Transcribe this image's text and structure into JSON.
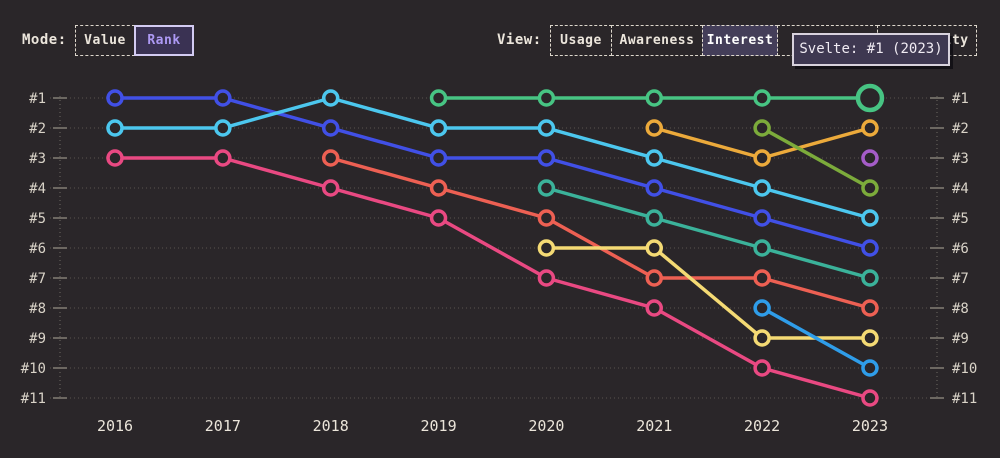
{
  "page": {
    "background": "#2a2629"
  },
  "controls": {
    "mode": {
      "label": "Mode:",
      "options": [
        {
          "label": "Value",
          "selected": false
        },
        {
          "label": "Rank",
          "selected": true
        }
      ]
    },
    "view": {
      "label": "View:",
      "options": [
        {
          "label": "Usage",
          "selected": false
        },
        {
          "label": "Awareness",
          "selected": false
        },
        {
          "label": "Interest",
          "selected": true
        },
        {
          "label": "",
          "selected": false
        },
        {
          "label": "Positivity",
          "selected": false
        }
      ]
    }
  },
  "tooltip": {
    "text": "Svelte: #1 (2023)"
  },
  "chart_data": {
    "type": "line",
    "subtype": "bump-chart-rankings",
    "x": [
      2016,
      2017,
      2018,
      2019,
      2020,
      2021,
      2022,
      2023
    ],
    "x_labels": [
      "2016",
      "2017",
      "2018",
      "2019",
      "2020",
      "2021",
      "2022",
      "2023"
    ],
    "rank_labels": [
      "#1",
      "#2",
      "#3",
      "#4",
      "#5",
      "#6",
      "#7",
      "#8",
      "#9",
      "#10",
      "#11"
    ],
    "ylim": [
      1,
      11
    ],
    "grid": "dotted-horizontal",
    "legend": "none",
    "highlight": {
      "series": "green",
      "year": 2023,
      "tooltip": "Svelte: #1 (2023)"
    },
    "series": [
      {
        "id": "blue",
        "color": "#4150e6",
        "points": [
          [
            2016,
            1
          ],
          [
            2017,
            1
          ],
          [
            2018,
            2
          ],
          [
            2019,
            3
          ],
          [
            2020,
            3
          ],
          [
            2021,
            4
          ],
          [
            2022,
            5
          ],
          [
            2023,
            6
          ]
        ]
      },
      {
        "id": "cyan",
        "color": "#4cc7ee",
        "points": [
          [
            2016,
            2
          ],
          [
            2017,
            2
          ],
          [
            2018,
            1
          ],
          [
            2019,
            2
          ],
          [
            2020,
            2
          ],
          [
            2021,
            3
          ],
          [
            2022,
            4
          ],
          [
            2023,
            5
          ]
        ]
      },
      {
        "id": "pink",
        "color": "#e94982",
        "points": [
          [
            2016,
            3
          ],
          [
            2017,
            3
          ],
          [
            2018,
            4
          ],
          [
            2019,
            5
          ],
          [
            2020,
            7
          ],
          [
            2021,
            8
          ],
          [
            2022,
            10
          ],
          [
            2023,
            11
          ]
        ]
      },
      {
        "id": "tomato",
        "color": "#ed6053",
        "points": [
          [
            2018,
            3
          ],
          [
            2019,
            4
          ],
          [
            2020,
            5
          ],
          [
            2021,
            7
          ],
          [
            2022,
            7
          ],
          [
            2023,
            8
          ]
        ]
      },
      {
        "id": "green",
        "color": "#47c483",
        "points": [
          [
            2019,
            1
          ],
          [
            2020,
            1
          ],
          [
            2021,
            1
          ],
          [
            2022,
            1
          ],
          [
            2023,
            1
          ]
        ],
        "highlight_year": 2023
      },
      {
        "id": "teal",
        "color": "#3bb29a",
        "points": [
          [
            2020,
            4
          ],
          [
            2021,
            5
          ],
          [
            2022,
            6
          ],
          [
            2023,
            7
          ]
        ]
      },
      {
        "id": "yellow",
        "color": "#f4da74",
        "points": [
          [
            2020,
            6
          ],
          [
            2021,
            6
          ],
          [
            2022,
            9
          ],
          [
            2023,
            9
          ]
        ]
      },
      {
        "id": "orange",
        "color": "#ecaa3b",
        "points": [
          [
            2021,
            2
          ],
          [
            2022,
            3
          ],
          [
            2023,
            2
          ]
        ]
      },
      {
        "id": "olive",
        "color": "#7cab3b",
        "points": [
          [
            2022,
            2
          ],
          [
            2023,
            4
          ]
        ]
      },
      {
        "id": "skyblue",
        "color": "#2f9de9",
        "points": [
          [
            2022,
            8
          ],
          [
            2023,
            10
          ]
        ]
      },
      {
        "id": "purple",
        "color": "#a55cc8",
        "points": [
          [
            2023,
            3
          ]
        ]
      }
    ]
  }
}
